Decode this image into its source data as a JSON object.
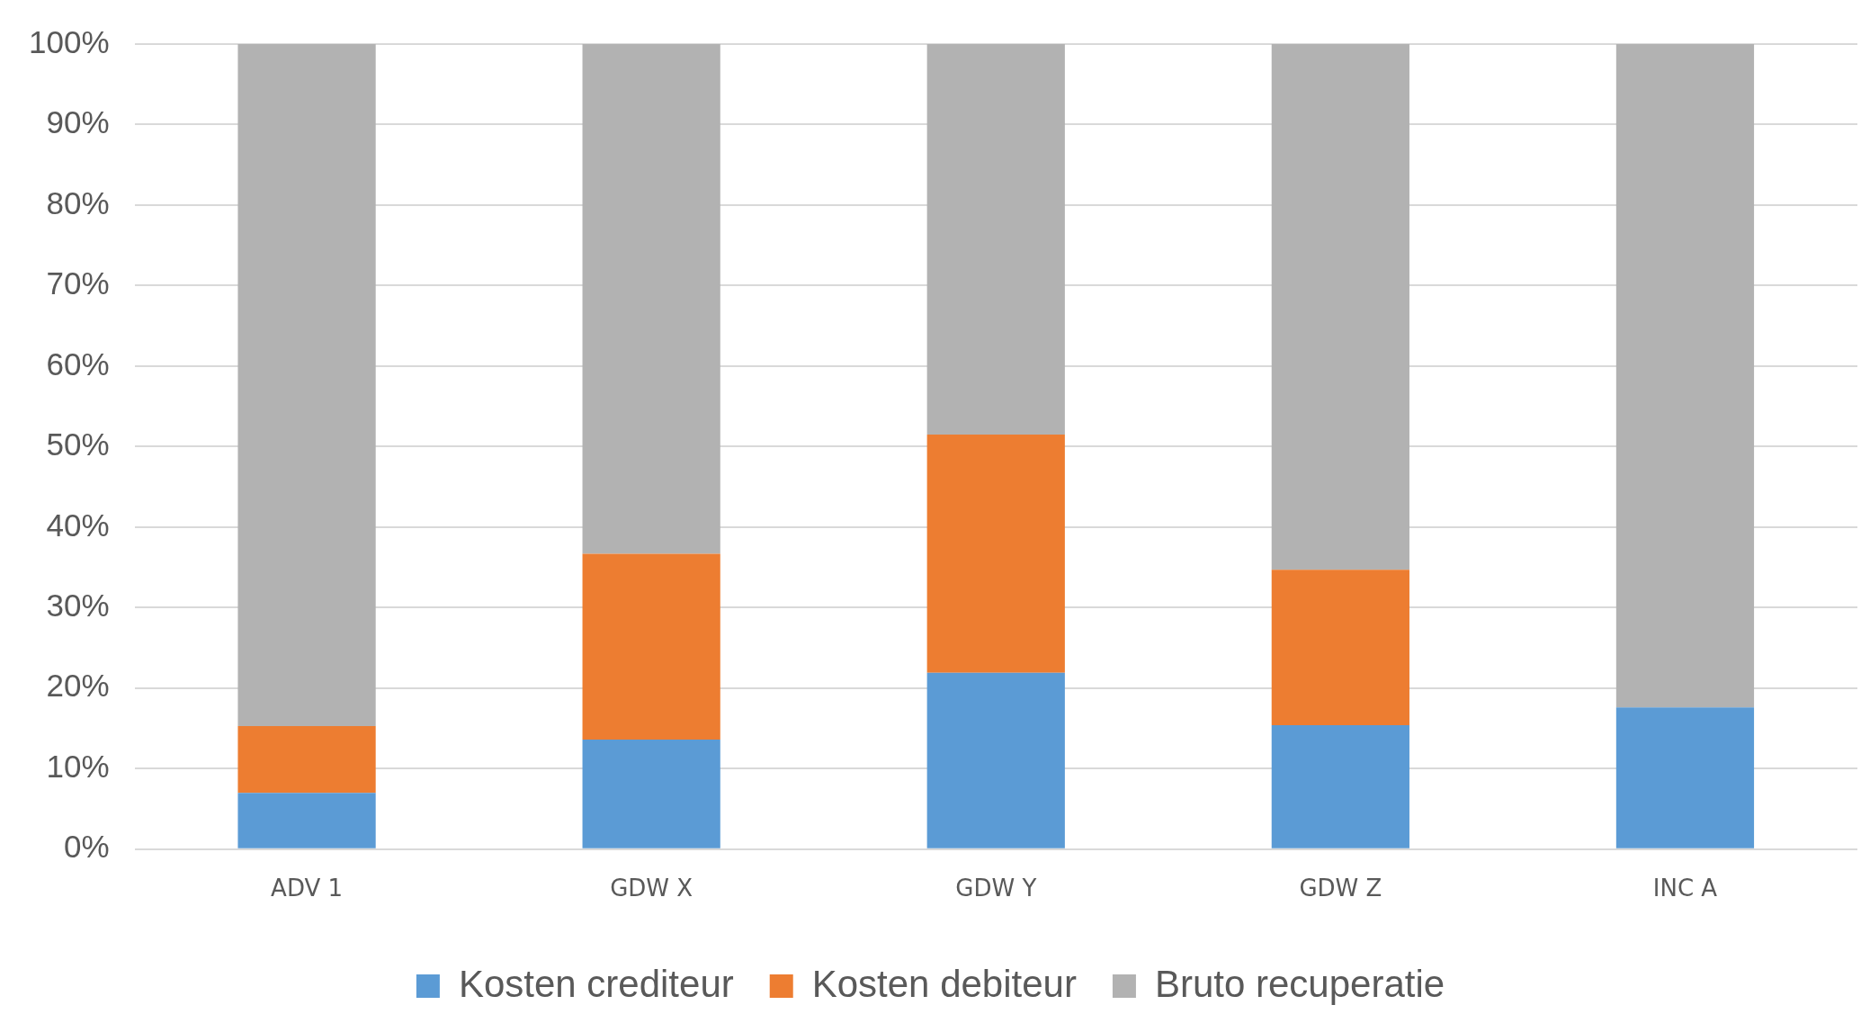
{
  "chart_data": {
    "type": "bar",
    "stacked": true,
    "categories": [
      "ADV 1",
      "GDW X",
      "GDW Y",
      "GDW Z",
      "INC A"
    ],
    "series": [
      {
        "name": "Kosten crediteur",
        "color": "#5b9bd5",
        "values": [
          7.0,
          13.6,
          21.9,
          15.4,
          17.6
        ]
      },
      {
        "name": "Kosten debiteur",
        "color": "#ed7d31",
        "values": [
          8.3,
          23.1,
          29.6,
          19.3,
          0
        ]
      },
      {
        "name": "Bruto recuperatie",
        "color": "#b2b2b2",
        "values": [
          84.7,
          63.3,
          48.5,
          65.3,
          82.4
        ]
      }
    ],
    "ylim": [
      0,
      100
    ],
    "yticks": [
      {
        "value": 0,
        "label": "0%"
      },
      {
        "value": 10,
        "label": "10%"
      },
      {
        "value": 20,
        "label": "20%"
      },
      {
        "value": 30,
        "label": "30%"
      },
      {
        "value": 40,
        "label": "40%"
      },
      {
        "value": 50,
        "label": "50%"
      },
      {
        "value": 60,
        "label": "60%"
      },
      {
        "value": 70,
        "label": "70%"
      },
      {
        "value": 80,
        "label": "80%"
      },
      {
        "value": 90,
        "label": "90%"
      },
      {
        "value": 100,
        "label": "100%"
      }
    ],
    "grid": "y",
    "legend": "bottom"
  }
}
